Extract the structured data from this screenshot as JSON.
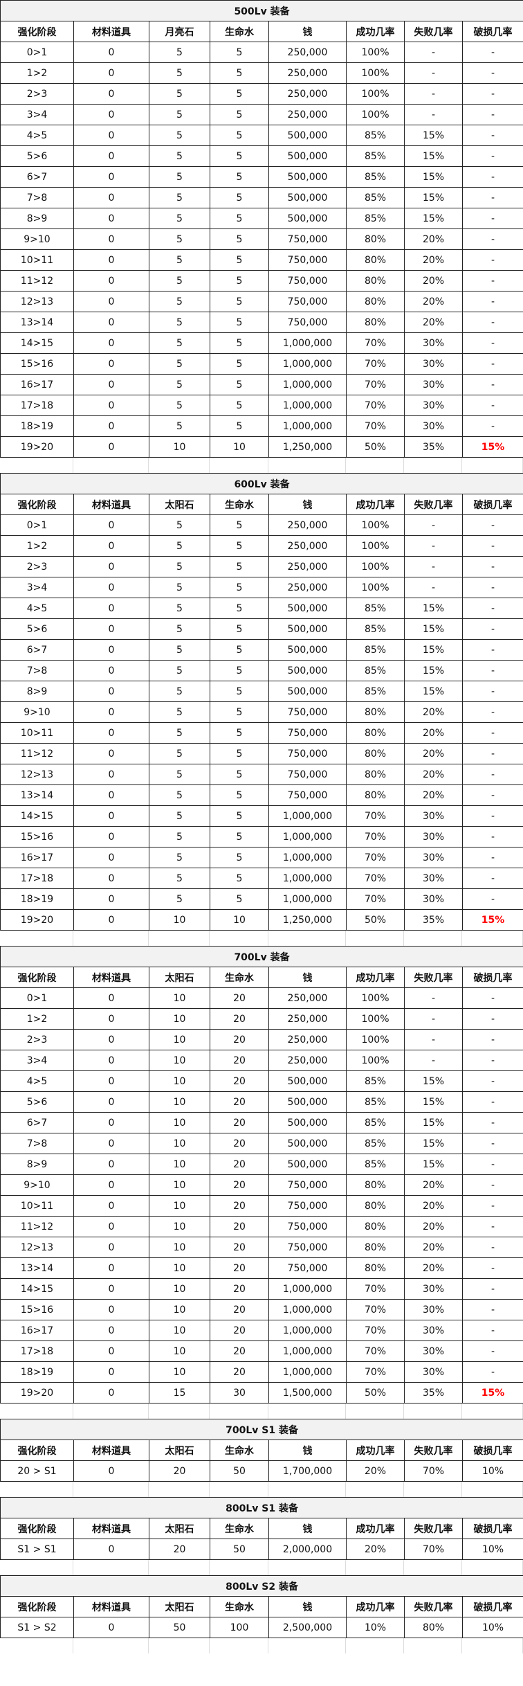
{
  "tables": [
    {
      "title": "500Lv 装备",
      "alert_color": "#ff0000",
      "headers": [
        "强化阶段",
        "材料道具",
        "月亮石",
        "生命水",
        "钱",
        "成功几率",
        "失败几率",
        "破损几率"
      ],
      "rows": [
        [
          "0>1",
          "0",
          "5",
          "5",
          "250,000",
          "100%",
          "-",
          "-"
        ],
        [
          "1>2",
          "0",
          "5",
          "5",
          "250,000",
          "100%",
          "-",
          "-"
        ],
        [
          "2>3",
          "0",
          "5",
          "5",
          "250,000",
          "100%",
          "-",
          "-"
        ],
        [
          "3>4",
          "0",
          "5",
          "5",
          "250,000",
          "100%",
          "-",
          "-"
        ],
        [
          "4>5",
          "0",
          "5",
          "5",
          "500,000",
          "85%",
          "15%",
          "-"
        ],
        [
          "5>6",
          "0",
          "5",
          "5",
          "500,000",
          "85%",
          "15%",
          "-"
        ],
        [
          "6>7",
          "0",
          "5",
          "5",
          "500,000",
          "85%",
          "15%",
          "-"
        ],
        [
          "7>8",
          "0",
          "5",
          "5",
          "500,000",
          "85%",
          "15%",
          "-"
        ],
        [
          "8>9",
          "0",
          "5",
          "5",
          "500,000",
          "85%",
          "15%",
          "-"
        ],
        [
          "9>10",
          "0",
          "5",
          "5",
          "750,000",
          "80%",
          "20%",
          "-"
        ],
        [
          "10>11",
          "0",
          "5",
          "5",
          "750,000",
          "80%",
          "20%",
          "-"
        ],
        [
          "11>12",
          "0",
          "5",
          "5",
          "750,000",
          "80%",
          "20%",
          "-"
        ],
        [
          "12>13",
          "0",
          "5",
          "5",
          "750,000",
          "80%",
          "20%",
          "-"
        ],
        [
          "13>14",
          "0",
          "5",
          "5",
          "750,000",
          "80%",
          "20%",
          "-"
        ],
        [
          "14>15",
          "0",
          "5",
          "5",
          "1,000,000",
          "70%",
          "30%",
          "-"
        ],
        [
          "15>16",
          "0",
          "5",
          "5",
          "1,000,000",
          "70%",
          "30%",
          "-"
        ],
        [
          "16>17",
          "0",
          "5",
          "5",
          "1,000,000",
          "70%",
          "30%",
          "-"
        ],
        [
          "17>18",
          "0",
          "5",
          "5",
          "1,000,000",
          "70%",
          "30%",
          "-"
        ],
        [
          "18>19",
          "0",
          "5",
          "5",
          "1,000,000",
          "70%",
          "30%",
          "-"
        ],
        [
          "19>20",
          "0",
          "10",
          "10",
          "1,250,000",
          "50%",
          "35%",
          "15%"
        ]
      ]
    },
    {
      "title": "600Lv 装备",
      "alert_color": "#ff0000",
      "headers": [
        "强化阶段",
        "材料道具",
        "太阳石",
        "生命水",
        "钱",
        "成功几率",
        "失败几率",
        "破损几率"
      ],
      "rows": [
        [
          "0>1",
          "0",
          "5",
          "5",
          "250,000",
          "100%",
          "-",
          "-"
        ],
        [
          "1>2",
          "0",
          "5",
          "5",
          "250,000",
          "100%",
          "-",
          "-"
        ],
        [
          "2>3",
          "0",
          "5",
          "5",
          "250,000",
          "100%",
          "-",
          "-"
        ],
        [
          "3>4",
          "0",
          "5",
          "5",
          "250,000",
          "100%",
          "-",
          "-"
        ],
        [
          "4>5",
          "0",
          "5",
          "5",
          "500,000",
          "85%",
          "15%",
          "-"
        ],
        [
          "5>6",
          "0",
          "5",
          "5",
          "500,000",
          "85%",
          "15%",
          "-"
        ],
        [
          "6>7",
          "0",
          "5",
          "5",
          "500,000",
          "85%",
          "15%",
          "-"
        ],
        [
          "7>8",
          "0",
          "5",
          "5",
          "500,000",
          "85%",
          "15%",
          "-"
        ],
        [
          "8>9",
          "0",
          "5",
          "5",
          "500,000",
          "85%",
          "15%",
          "-"
        ],
        [
          "9>10",
          "0",
          "5",
          "5",
          "750,000",
          "80%",
          "20%",
          "-"
        ],
        [
          "10>11",
          "0",
          "5",
          "5",
          "750,000",
          "80%",
          "20%",
          "-"
        ],
        [
          "11>12",
          "0",
          "5",
          "5",
          "750,000",
          "80%",
          "20%",
          "-"
        ],
        [
          "12>13",
          "0",
          "5",
          "5",
          "750,000",
          "80%",
          "20%",
          "-"
        ],
        [
          "13>14",
          "0",
          "5",
          "5",
          "750,000",
          "80%",
          "20%",
          "-"
        ],
        [
          "14>15",
          "0",
          "5",
          "5",
          "1,000,000",
          "70%",
          "30%",
          "-"
        ],
        [
          "15>16",
          "0",
          "5",
          "5",
          "1,000,000",
          "70%",
          "30%",
          "-"
        ],
        [
          "16>17",
          "0",
          "5",
          "5",
          "1,000,000",
          "70%",
          "30%",
          "-"
        ],
        [
          "17>18",
          "0",
          "5",
          "5",
          "1,000,000",
          "70%",
          "30%",
          "-"
        ],
        [
          "18>19",
          "0",
          "5",
          "5",
          "1,000,000",
          "70%",
          "30%",
          "-"
        ],
        [
          "19>20",
          "0",
          "10",
          "10",
          "1,250,000",
          "50%",
          "35%",
          "15%"
        ]
      ]
    },
    {
      "title": "700Lv 装备",
      "alert_color": "#ff0000",
      "headers": [
        "强化阶段",
        "材料道具",
        "太阳石",
        "生命水",
        "钱",
        "成功几率",
        "失败几率",
        "破损几率"
      ],
      "rows": [
        [
          "0>1",
          "0",
          "10",
          "20",
          "250,000",
          "100%",
          "-",
          "-"
        ],
        [
          "1>2",
          "0",
          "10",
          "20",
          "250,000",
          "100%",
          "-",
          "-"
        ],
        [
          "2>3",
          "0",
          "10",
          "20",
          "250,000",
          "100%",
          "-",
          "-"
        ],
        [
          "3>4",
          "0",
          "10",
          "20",
          "250,000",
          "100%",
          "-",
          "-"
        ],
        [
          "4>5",
          "0",
          "10",
          "20",
          "500,000",
          "85%",
          "15%",
          "-"
        ],
        [
          "5>6",
          "0",
          "10",
          "20",
          "500,000",
          "85%",
          "15%",
          "-"
        ],
        [
          "6>7",
          "0",
          "10",
          "20",
          "500,000",
          "85%",
          "15%",
          "-"
        ],
        [
          "7>8",
          "0",
          "10",
          "20",
          "500,000",
          "85%",
          "15%",
          "-"
        ],
        [
          "8>9",
          "0",
          "10",
          "20",
          "500,000",
          "85%",
          "15%",
          "-"
        ],
        [
          "9>10",
          "0",
          "10",
          "20",
          "750,000",
          "80%",
          "20%",
          "-"
        ],
        [
          "10>11",
          "0",
          "10",
          "20",
          "750,000",
          "80%",
          "20%",
          "-"
        ],
        [
          "11>12",
          "0",
          "10",
          "20",
          "750,000",
          "80%",
          "20%",
          "-"
        ],
        [
          "12>13",
          "0",
          "10",
          "20",
          "750,000",
          "80%",
          "20%",
          "-"
        ],
        [
          "13>14",
          "0",
          "10",
          "20",
          "750,000",
          "80%",
          "20%",
          "-"
        ],
        [
          "14>15",
          "0",
          "10",
          "20",
          "1,000,000",
          "70%",
          "30%",
          "-"
        ],
        [
          "15>16",
          "0",
          "10",
          "20",
          "1,000,000",
          "70%",
          "30%",
          "-"
        ],
        [
          "16>17",
          "0",
          "10",
          "20",
          "1,000,000",
          "70%",
          "30%",
          "-"
        ],
        [
          "17>18",
          "0",
          "10",
          "20",
          "1,000,000",
          "70%",
          "30%",
          "-"
        ],
        [
          "18>19",
          "0",
          "10",
          "20",
          "1,000,000",
          "70%",
          "30%",
          "-"
        ],
        [
          "19>20",
          "0",
          "15",
          "30",
          "1,500,000",
          "50%",
          "35%",
          "15%"
        ]
      ]
    },
    {
      "title": "700Lv S1 装备",
      "headers": [
        "强化阶段",
        "材料道具",
        "太阳石",
        "生命水",
        "钱",
        "成功几率",
        "失败几率",
        "破损几率"
      ],
      "rows": [
        [
          "20 > S1",
          "0",
          "20",
          "50",
          "1,700,000",
          "20%",
          "70%",
          "10%"
        ]
      ]
    },
    {
      "title": "800Lv S1 装备",
      "headers": [
        "强化阶段",
        "材料道具",
        "太阳石",
        "生命水",
        "钱",
        "成功几率",
        "失败几率",
        "破损几率"
      ],
      "rows": [
        [
          "S1 > S1",
          "0",
          "20",
          "50",
          "2,000,000",
          "20%",
          "70%",
          "10%"
        ]
      ]
    },
    {
      "title": "800Lv S2 装备",
      "headers": [
        "强化阶段",
        "材料道具",
        "太阳石",
        "生命水",
        "钱",
        "成功几率",
        "失败几率",
        "破损几率"
      ],
      "rows": [
        [
          "S1 > S2",
          "0",
          "50",
          "100",
          "2,500,000",
          "10%",
          "80%",
          "10%"
        ]
      ]
    }
  ]
}
